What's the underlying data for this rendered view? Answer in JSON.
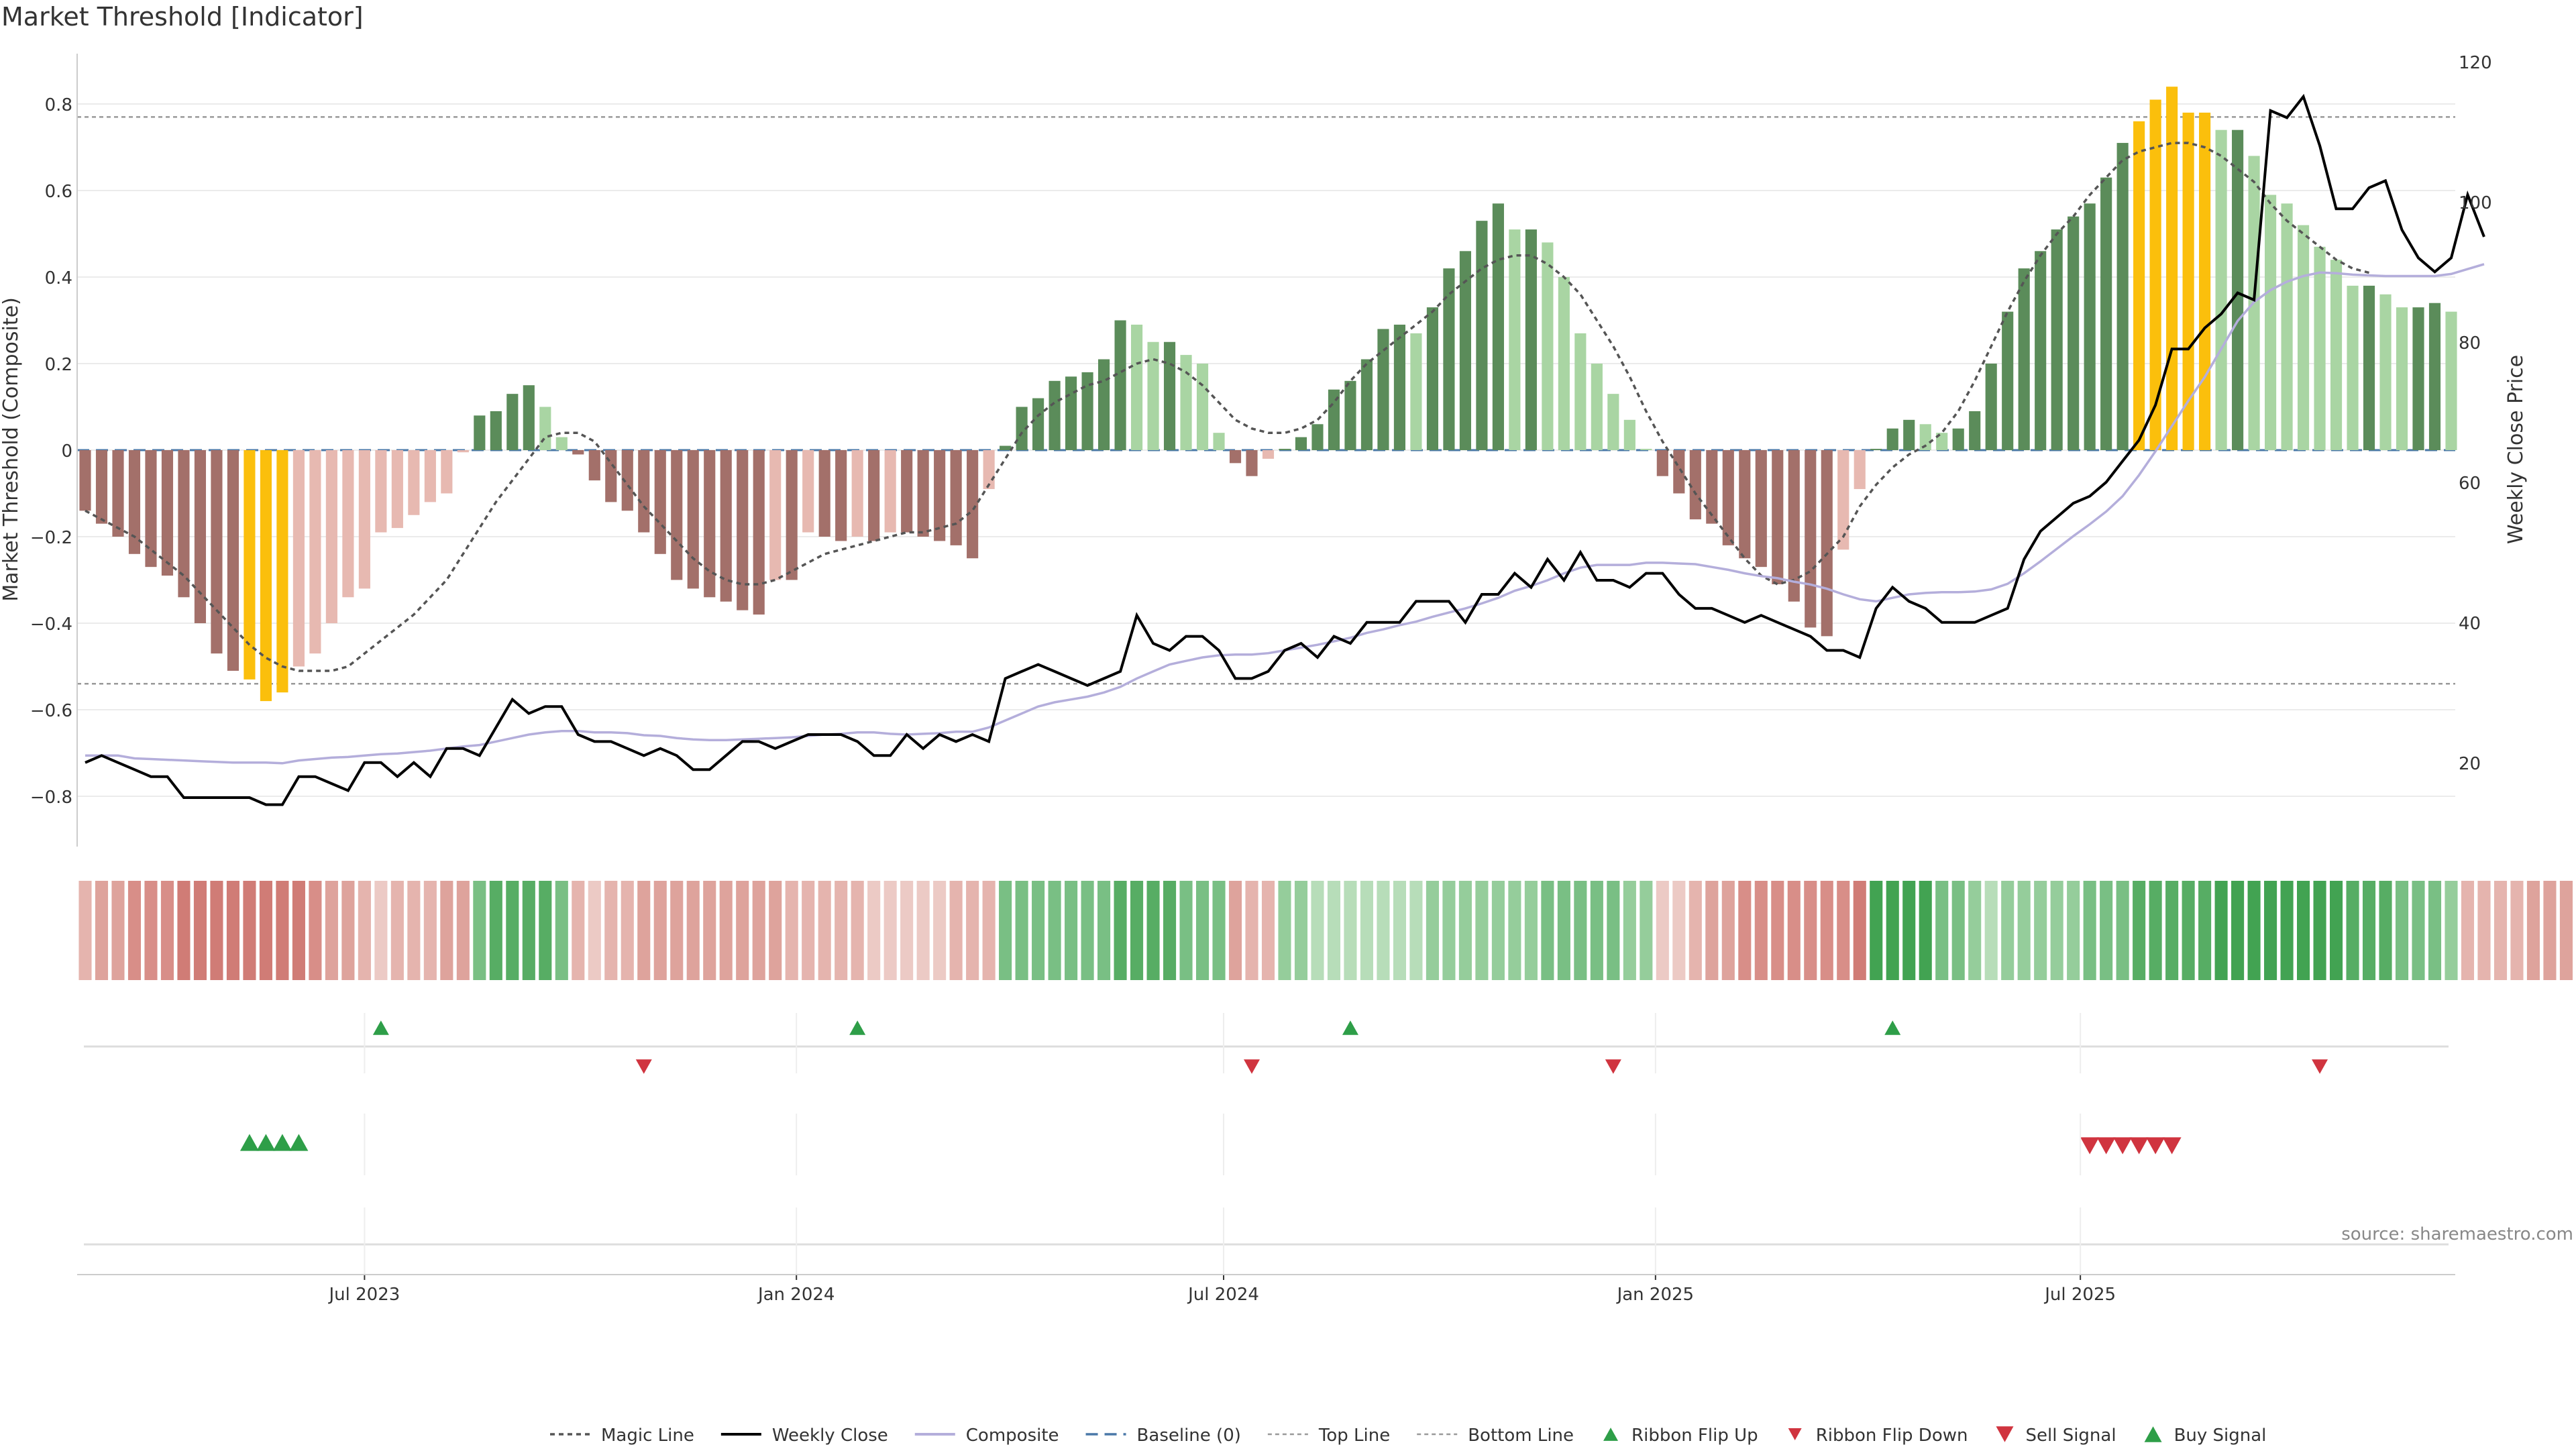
{
  "title": "Market Threshold [Indicator]",
  "source": "source: sharemaestro.com",
  "colors": {
    "bar_pos_strong": "#5b8c5a",
    "bar_pos_weak": "#a9d5a3",
    "bar_neg_strong": "#a3706a",
    "bar_neg_weak": "#e7b9b1",
    "bar_extreme": "#fbbf0c",
    "magic_line": "#555555",
    "weekly_close": "#000000",
    "composite": "#b4aedb",
    "baseline": "#4a78a8",
    "ribbon_up": "#2e9e48",
    "ribbon_down": "#d0343f",
    "grid": "#ebebeb"
  },
  "chart_data": {
    "type": "bar",
    "title": "Market Threshold [Indicator]",
    "ylabel_left": "Market Threshold (Composite)",
    "ylabel_right": "Weekly Close Price",
    "ylim_left": [
      -0.92,
      0.92
    ],
    "ylim_right": [
      10,
      125
    ],
    "yticks_left": [
      "0.8",
      "0.6",
      "0.4",
      "0.2",
      "0",
      "−0.2",
      "−0.4",
      "−0.6",
      "−0.8"
    ],
    "yticks_right": [
      "120",
      "100",
      "80",
      "60",
      "40",
      "20"
    ],
    "x_start": "2023-03-04",
    "x_interval": "weekly",
    "xticks": [
      "Jul 2023",
      "Jan 2024",
      "Jul 2024",
      "Jan 2025",
      "Jul 2025"
    ],
    "top_line": 0.77,
    "bottom_line": -0.54,
    "baseline": 0,
    "composite": [
      -0.14,
      -0.17,
      -0.2,
      -0.24,
      -0.27,
      -0.29,
      -0.34,
      -0.4,
      -0.47,
      -0.51,
      -0.53,
      -0.58,
      -0.56,
      -0.5,
      -0.47,
      -0.4,
      -0.34,
      -0.32,
      -0.19,
      -0.18,
      -0.15,
      -0.12,
      -0.1,
      -0.005,
      0.08,
      0.09,
      0.13,
      0.15,
      0.1,
      0.03,
      -0.01,
      -0.07,
      -0.12,
      -0.14,
      -0.19,
      -0.24,
      -0.3,
      -0.32,
      -0.34,
      -0.35,
      -0.37,
      -0.38,
      -0.3,
      -0.3,
      -0.19,
      -0.2,
      -0.21,
      -0.2,
      -0.21,
      -0.19,
      -0.19,
      -0.2,
      -0.21,
      -0.22,
      -0.25,
      -0.09,
      0.01,
      0.1,
      0.12,
      0.16,
      0.17,
      0.18,
      0.21,
      0.3,
      0.29,
      0.25,
      0.25,
      0.22,
      0.2,
      0.04,
      -0.03,
      -0.06,
      -0.02,
      0.003,
      0.03,
      0.06,
      0.14,
      0.16,
      0.21,
      0.28,
      0.29,
      0.27,
      0.33,
      0.42,
      0.46,
      0.53,
      0.57,
      0.51,
      0.51,
      0.48,
      0.4,
      0.27,
      0.2,
      0.13,
      0.07,
      0.003,
      -0.06,
      -0.1,
      -0.16,
      -0.17,
      -0.22,
      -0.25,
      -0.27,
      -0.31,
      -0.35,
      -0.41,
      -0.43,
      -0.23,
      -0.09,
      0.003,
      0.05,
      0.07,
      0.06,
      0.04,
      0.05,
      0.09,
      0.2,
      0.32,
      0.42,
      0.46,
      0.51,
      0.54,
      0.57,
      0.63,
      0.71,
      0.76,
      0.81,
      0.84,
      0.78,
      0.78,
      0.74,
      0.74,
      0.68,
      0.59,
      0.57,
      0.52,
      0.47,
      0.44,
      0.38,
      0.38,
      0.36,
      0.33,
      0.33,
      0.34,
      0.32
    ],
    "magic_line": [
      -0.14,
      -0.16,
      -0.18,
      -0.2,
      -0.23,
      -0.26,
      -0.29,
      -0.33,
      -0.37,
      -0.41,
      -0.45,
      -0.48,
      -0.5,
      -0.51,
      -0.51,
      -0.51,
      -0.5,
      -0.47,
      -0.44,
      -0.41,
      -0.38,
      -0.34,
      -0.3,
      -0.24,
      -0.18,
      -0.12,
      -0.07,
      -0.02,
      0.03,
      0.04,
      0.04,
      0.02,
      -0.03,
      -0.08,
      -0.13,
      -0.17,
      -0.21,
      -0.25,
      -0.28,
      -0.3,
      -0.31,
      -0.31,
      -0.3,
      -0.28,
      -0.26,
      -0.24,
      -0.23,
      -0.22,
      -0.21,
      -0.2,
      -0.19,
      -0.19,
      -0.18,
      -0.17,
      -0.14,
      -0.08,
      -0.02,
      0.04,
      0.08,
      0.11,
      0.13,
      0.15,
      0.16,
      0.18,
      0.2,
      0.21,
      0.2,
      0.18,
      0.15,
      0.11,
      0.07,
      0.05,
      0.04,
      0.04,
      0.05,
      0.07,
      0.11,
      0.16,
      0.2,
      0.23,
      0.26,
      0.29,
      0.32,
      0.36,
      0.39,
      0.42,
      0.44,
      0.45,
      0.45,
      0.43,
      0.4,
      0.36,
      0.3,
      0.24,
      0.17,
      0.09,
      0.02,
      -0.04,
      -0.1,
      -0.15,
      -0.2,
      -0.25,
      -0.29,
      -0.31,
      -0.3,
      -0.28,
      -0.24,
      -0.2,
      -0.13,
      -0.08,
      -0.04,
      -0.01,
      0.01,
      0.04,
      0.09,
      0.16,
      0.24,
      0.32,
      0.39,
      0.45,
      0.5,
      0.54,
      0.59,
      0.63,
      0.67,
      0.69,
      0.7,
      0.71,
      0.71,
      0.7,
      0.68,
      0.65,
      0.62,
      0.57,
      0.53,
      0.5,
      0.47,
      0.44,
      0.42,
      0.41
    ],
    "weekly_close": [
      20,
      21,
      20,
      19,
      18,
      18,
      15,
      15,
      15,
      15,
      15,
      14,
      14,
      18,
      18,
      17,
      16,
      20,
      20,
      18,
      20,
      18,
      22,
      22,
      21,
      25,
      29,
      27,
      28,
      28,
      24,
      23,
      23,
      22,
      21,
      22,
      21,
      19,
      19,
      21,
      23,
      23,
      22,
      23,
      24,
      24,
      24,
      23,
      21,
      21,
      24,
      22,
      24,
      23,
      24,
      23,
      32,
      33,
      34,
      33,
      32,
      31,
      32,
      33,
      41,
      37,
      36,
      38,
      38,
      36,
      32,
      32,
      33,
      36,
      37,
      35,
      38,
      37,
      40,
      40,
      40,
      43,
      43,
      43,
      40,
      44,
      44,
      47,
      45,
      49,
      46,
      50,
      46,
      46,
      45,
      47,
      47,
      44,
      42,
      42,
      41,
      40,
      41,
      40,
      39,
      38,
      36,
      36,
      35,
      42,
      45,
      43,
      42,
      40,
      40,
      40,
      41,
      42,
      49,
      53,
      55,
      57,
      58,
      60,
      63,
      66,
      71,
      79,
      79,
      82,
      84,
      87,
      86,
      113,
      112,
      115,
      108,
      99,
      99,
      102,
      103,
      96,
      92,
      90,
      92,
      101,
      95
    ],
    "composite_avg": [
      21,
      21,
      21,
      20.6,
      20.5,
      20.4,
      20.3,
      20.2,
      20.1,
      20,
      20,
      20,
      19.9,
      20.3,
      20.5,
      20.7,
      20.8,
      21,
      21.2,
      21.3,
      21.5,
      21.7,
      22,
      22.3,
      22.5,
      23,
      23.5,
      24,
      24.3,
      24.5,
      24.5,
      24.3,
      24.3,
      24.2,
      23.9,
      23.8,
      23.5,
      23.3,
      23.2,
      23.2,
      23.3,
      23.4,
      23.5,
      23.6,
      23.8,
      24,
      24.1,
      24.3,
      24.3,
      24.1,
      24,
      24.1,
      24.2,
      24.4,
      24.4,
      25,
      26,
      27,
      28,
      28.6,
      29,
      29.4,
      30,
      30.8,
      32,
      33,
      34,
      34.5,
      35,
      35.3,
      35.4,
      35.4,
      35.6,
      36,
      36.4,
      36.8,
      37.3,
      37.8,
      38.5,
      39,
      39.6,
      40.1,
      40.8,
      41.4,
      42,
      42.7,
      43.5,
      44.5,
      45.2,
      46,
      47,
      47.8,
      48.2,
      48.2,
      48.2,
      48.5,
      48.5,
      48.4,
      48.3,
      47.9,
      47.5,
      47,
      46.6,
      46.3,
      45.8,
      45.4,
      44.8,
      44,
      43.3,
      43,
      43.5,
      44,
      44.2,
      44.3,
      44.3,
      44.4,
      44.7,
      45.5,
      47,
      48.7,
      50.5,
      52.3,
      54,
      55.8,
      58,
      61,
      64.4,
      68,
      71.6,
      75,
      79,
      83,
      85.7,
      87.4,
      88.6,
      89.4,
      89.9,
      89.8,
      89.6,
      89.5,
      89.4,
      89.4,
      89.4,
      89.4,
      89.7,
      90.4,
      91.1
    ],
    "ribbon": [
      2,
      3,
      3,
      4,
      4,
      4,
      5,
      5,
      5,
      5,
      5,
      5,
      5,
      5,
      4,
      3,
      3,
      2,
      1,
      2,
      2,
      2,
      3,
      3,
      3,
      4,
      4,
      4,
      4,
      3,
      2,
      1,
      2,
      2,
      3,
      3,
      3,
      3,
      3,
      3,
      3,
      3,
      3,
      2,
      2,
      2,
      2,
      2,
      1,
      1,
      1,
      1,
      1,
      2,
      2,
      2,
      3,
      3,
      3,
      3,
      3,
      3,
      3,
      4,
      4,
      4,
      4,
      3,
      3,
      3,
      3,
      2,
      2,
      2,
      2,
      1,
      1,
      1,
      1,
      1,
      1,
      1,
      2,
      2,
      2,
      2,
      2,
      2,
      2,
      3,
      3,
      3,
      3,
      3,
      2,
      2,
      1,
      1,
      2,
      3,
      3,
      4,
      4,
      4,
      4,
      4,
      4,
      4,
      5,
      5,
      5,
      5,
      5,
      3,
      3,
      2,
      1,
      2,
      2,
      2,
      2,
      2,
      3,
      3,
      3,
      4,
      4,
      4,
      4,
      4,
      5,
      5,
      5,
      5,
      5,
      5,
      5,
      5,
      4,
      4,
      4,
      3,
      3,
      3,
      2,
      2,
      2,
      2,
      2,
      3,
      3,
      3,
      3
    ],
    "ribbon_flip_up": [
      18,
      47,
      77,
      110
    ],
    "ribbon_flip_down": [
      34,
      71,
      93,
      136
    ],
    "buy_signal": [
      10,
      11,
      12,
      13
    ],
    "sell_signal": [
      122,
      123,
      124,
      125,
      126,
      127
    ]
  },
  "legend": [
    {
      "label": "Magic Line",
      "key": "magic"
    },
    {
      "label": "Weekly Close",
      "key": "close"
    },
    {
      "label": "Composite",
      "key": "composite"
    },
    {
      "label": "Baseline (0)",
      "key": "baseline"
    },
    {
      "label": "Top Line",
      "key": "top"
    },
    {
      "label": "Bottom Line",
      "key": "bottom"
    },
    {
      "label": "Ribbon Flip Up",
      "key": "flipup"
    },
    {
      "label": "Ribbon Flip Down",
      "key": "flipdown"
    },
    {
      "label": "Sell Signal",
      "key": "sell"
    },
    {
      "label": "Buy Signal",
      "key": "buy"
    }
  ]
}
